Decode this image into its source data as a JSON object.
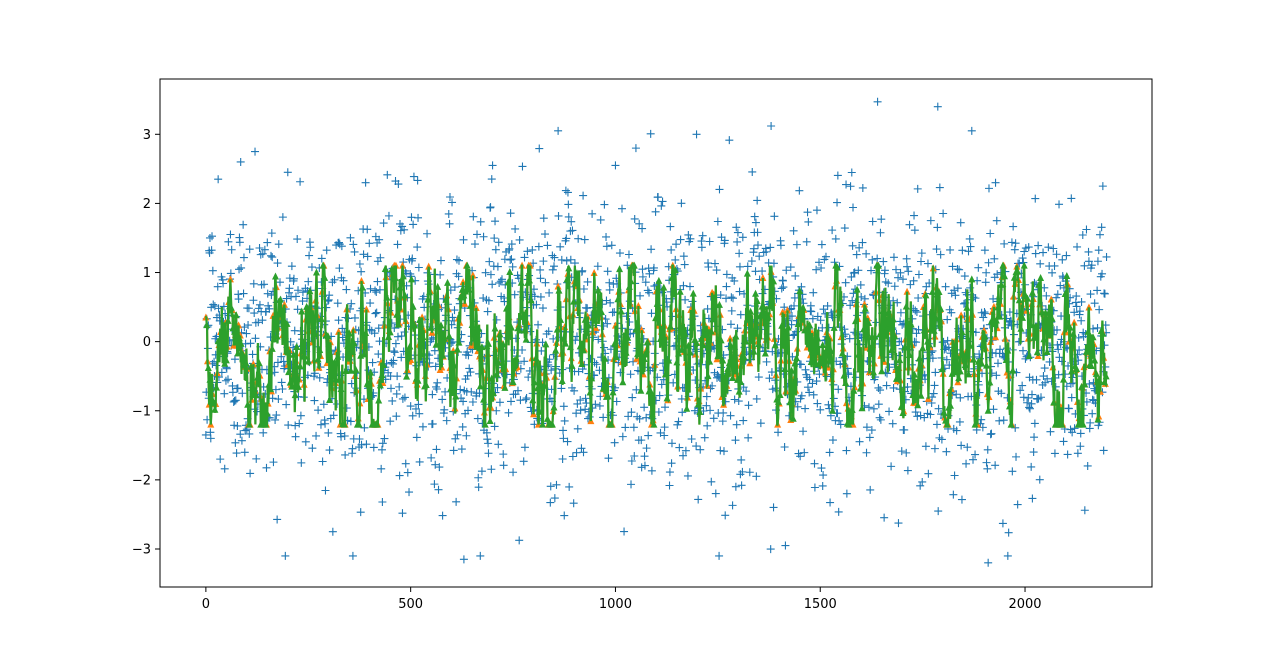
{
  "chart_data": {
    "type": "line",
    "title": "",
    "xlabel": "",
    "ylabel": "",
    "xlim": [
      -112,
      2310
    ],
    "ylim": [
      -3.55,
      3.8
    ],
    "x_ticks": [
      0,
      500,
      1000,
      1500,
      2000
    ],
    "y_ticks": [
      -3,
      -2,
      -1,
      0,
      1,
      2,
      3
    ],
    "x_tick_labels": [
      "0",
      "500",
      "1000",
      "1500",
      "2000"
    ],
    "y_tick_labels": [
      "−3",
      "−2",
      "−1",
      "0",
      "1",
      "2",
      "3"
    ],
    "grid": false,
    "legend": "none",
    "n_points": 2200,
    "series": [
      {
        "kind": "scatter",
        "marker": "+",
        "color": "#1f77b4",
        "description_points_sample": [
          [
            0,
            -1.35
          ],
          [
            10,
            1.5
          ],
          [
            30,
            2.35
          ],
          [
            60,
            1.55
          ],
          [
            85,
            2.6
          ],
          [
            120,
            2.75
          ],
          [
            200,
            2.45
          ],
          [
            310,
            -2.75
          ],
          [
            390,
            2.3
          ],
          [
            470,
            2.28
          ],
          [
            630,
            -3.15
          ],
          [
            670,
            -3.1
          ],
          [
            700,
            2.55
          ],
          [
            860,
            3.05
          ],
          [
            1000,
            2.55
          ],
          [
            1050,
            2.8
          ],
          [
            1380,
            3.12
          ],
          [
            1415,
            -2.95
          ],
          [
            1640,
            3.47
          ],
          [
            1870,
            3.05
          ],
          [
            1910,
            -3.2
          ],
          [
            2190,
            2.25
          ]
        ],
        "distribution": {
          "mean": 0.0,
          "std": 1.0
        }
      },
      {
        "kind": "line",
        "marker": "triangle-up",
        "color": "#ff7f0e",
        "note_points_sample": [
          [
            0,
            0.35
          ],
          [
            20,
            -0.9
          ],
          [
            60,
            0.9
          ],
          [
            270,
            1.0
          ],
          [
            480,
            1.1
          ],
          [
            590,
            0.85
          ],
          [
            800,
            -1.05
          ],
          [
            940,
            -1.15
          ],
          [
            1010,
            1.05
          ],
          [
            1530,
            -1.0
          ],
          [
            1870,
            0.9
          ],
          [
            1910,
            -1.0
          ],
          [
            2200,
            -0.5
          ]
        ],
        "range": [
          -1.2,
          1.1
        ]
      },
      {
        "kind": "line",
        "color": "#2ca02c",
        "note": "overlays the orange series"
      }
    ]
  }
}
